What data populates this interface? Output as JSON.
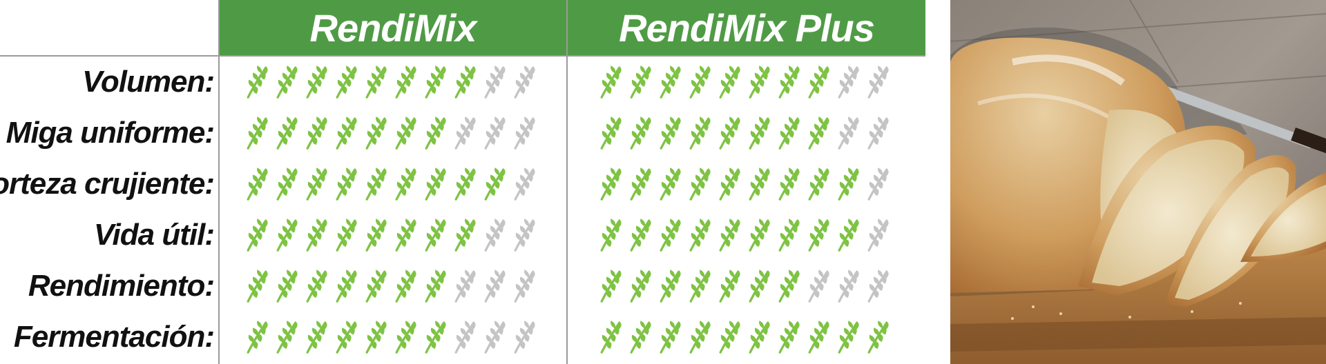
{
  "columns": [
    {
      "label": "RendiMix"
    },
    {
      "label": "RendiMix Plus"
    }
  ],
  "max_score": 10,
  "colors": {
    "header_bg": "#4f9b45",
    "icon_on": "#7ec343",
    "icon_off": "#c4c4c4"
  },
  "icon": "wheat-icon",
  "rows": [
    {
      "label": "Volumen:",
      "scores": [
        8,
        8
      ]
    },
    {
      "label": "Miga uniforme:",
      "scores": [
        7,
        8
      ]
    },
    {
      "label": "Corteza crujiente:",
      "scores": [
        9,
        9
      ]
    },
    {
      "label": "Vida útil:",
      "scores": [
        8,
        9
      ]
    },
    {
      "label": "Rendimiento:",
      "scores": [
        7,
        7
      ]
    },
    {
      "label": "Fermentación:",
      "scores": [
        7,
        10
      ]
    }
  ]
}
